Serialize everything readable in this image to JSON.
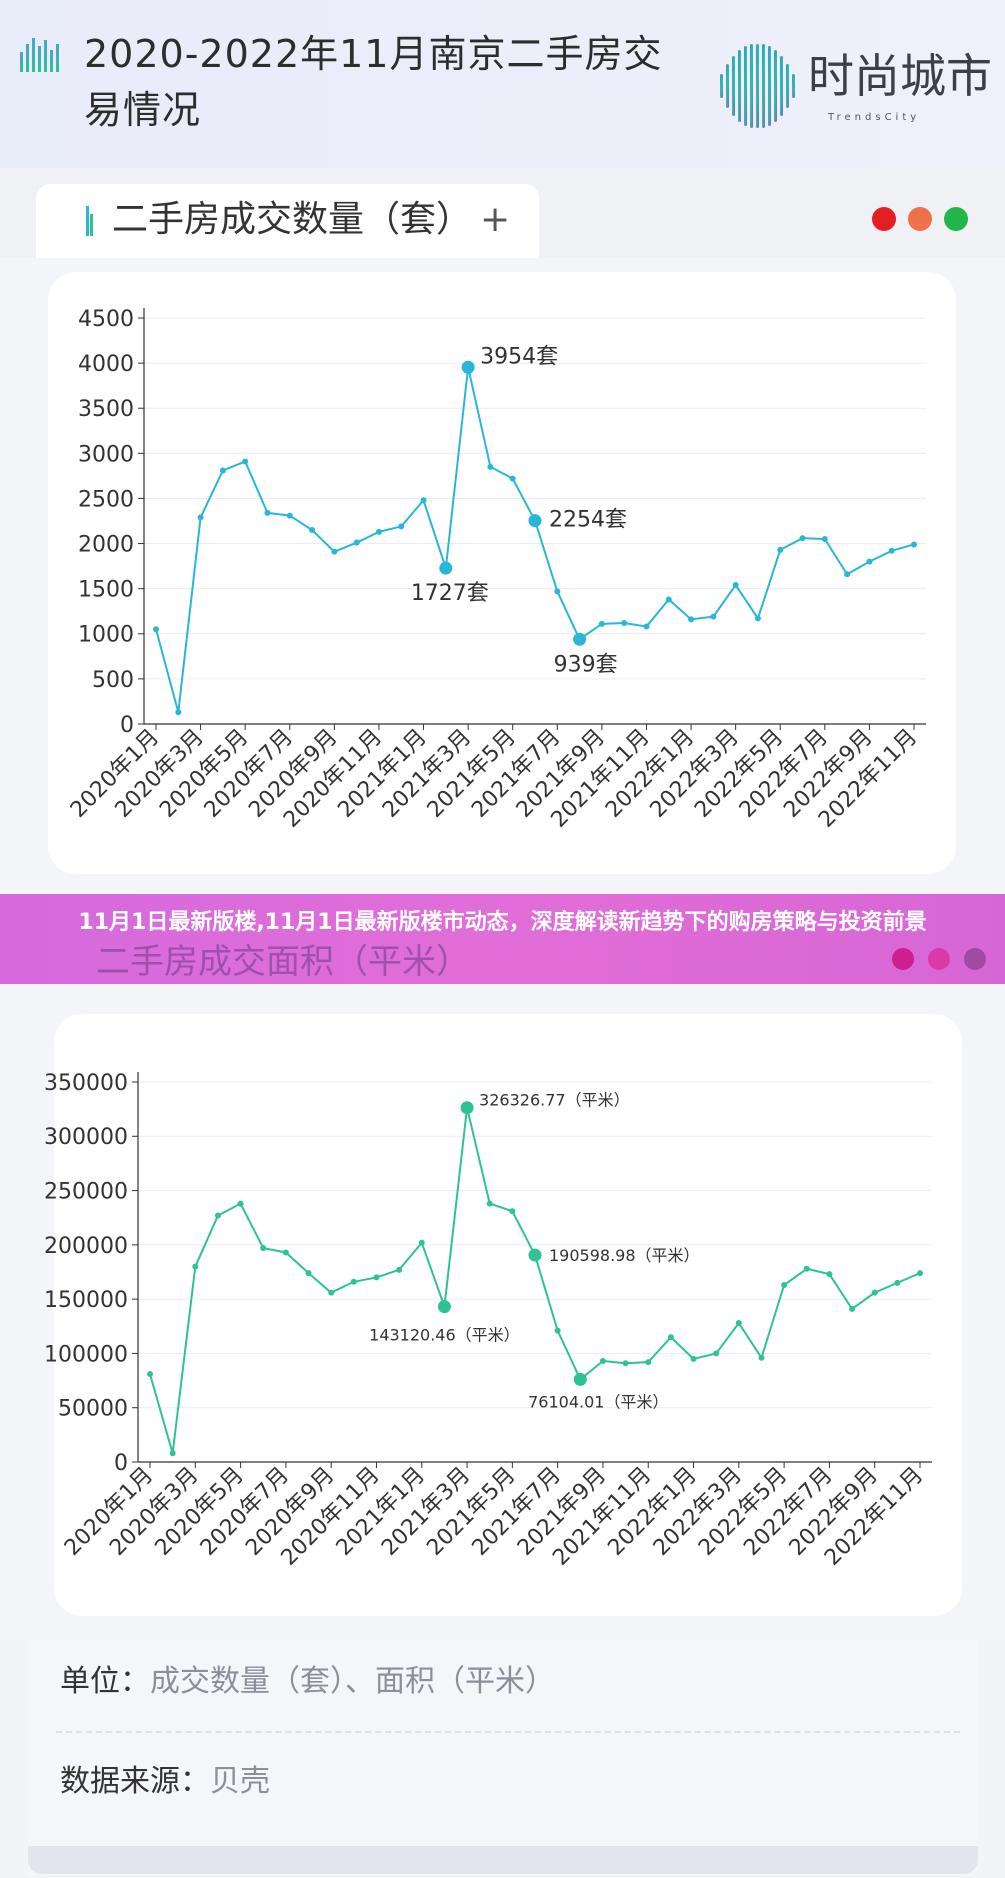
{
  "header": {
    "title": "2020-2022年11月南京二手房交易情况",
    "logo_text": "时尚城市",
    "logo_sub": "TrendsCity"
  },
  "tab": {
    "title": "二手房成交数量（套）",
    "plus": "+"
  },
  "window_dots": [
    "#e21f24",
    "#f07049",
    "#22b54a"
  ],
  "banner": {
    "text": "11月1日最新版楼,11月1日最新版楼市动态，深度解读新趋势下的购房策略与投资前景",
    "covered_title": "二手房成交面积（平米）"
  },
  "banner_dots": [
    "#cf1f8f",
    "#d93aa8",
    "#a04aa4"
  ],
  "footer": {
    "unit_key": "单位：",
    "unit_value": "成交数量（套）、面积（平米）",
    "source_key": "数据来源：",
    "source_value": "贝壳"
  },
  "chart_data": [
    {
      "type": "line",
      "color": "#29b6d8",
      "categories": [
        "2020年1月",
        "2020年2月",
        "2020年3月",
        "2020年4月",
        "2020年5月",
        "2020年6月",
        "2020年7月",
        "2020年8月",
        "2020年9月",
        "2020年10月",
        "2020年11月",
        "2020年12月",
        "2021年1月",
        "2021年2月",
        "2021年3月",
        "2021年4月",
        "2021年5月",
        "2021年6月",
        "2021年7月",
        "2021年8月",
        "2021年9月",
        "2021年10月",
        "2021年11月",
        "2021年12月",
        "2022年1月",
        "2022年2月",
        "2022年3月",
        "2022年4月",
        "2022年5月",
        "2022年6月",
        "2022年7月",
        "2022年8月",
        "2022年9月",
        "2022年10月",
        "2022年11月"
      ],
      "tick_labels": [
        "2020年1月",
        "2020年3月",
        "2020年5月",
        "2020年7月",
        "2020年9月",
        "2020年11月",
        "2021年1月",
        "2021年3月",
        "2021年5月",
        "2021年7月",
        "2021年9月",
        "2021年11月",
        "2022年1月",
        "2022年3月",
        "2022年5月",
        "2022年7月",
        "2022年9月",
        "2022年11月"
      ],
      "values": [
        1050,
        130,
        2290,
        2810,
        2910,
        2340,
        2310,
        2150,
        1910,
        2010,
        2130,
        2190,
        2480,
        1727,
        3954,
        2850,
        2720,
        2254,
        1470,
        939,
        1110,
        1120,
        1080,
        1380,
        1160,
        1190,
        1540,
        1170,
        1930,
        2060,
        2050,
        1660,
        1800,
        1920,
        1990
      ],
      "ylim": [
        0,
        4500
      ],
      "yticks": [
        0,
        500,
        1000,
        1500,
        2000,
        2500,
        3000,
        3500,
        4000,
        4500
      ],
      "annotations": [
        {
          "index": 14,
          "label": "3954套"
        },
        {
          "index": 13,
          "label": "1727套"
        },
        {
          "index": 17,
          "label": "2254套"
        },
        {
          "index": 19,
          "label": "939套"
        }
      ],
      "grid": true
    },
    {
      "type": "line",
      "color": "#2ec391",
      "categories": [
        "2020年1月",
        "2020年2月",
        "2020年3月",
        "2020年4月",
        "2020年5月",
        "2020年6月",
        "2020年7月",
        "2020年8月",
        "2020年9月",
        "2020年10月",
        "2020年11月",
        "2020年12月",
        "2021年1月",
        "2021年2月",
        "2021年3月",
        "2021年4月",
        "2021年5月",
        "2021年6月",
        "2021年7月",
        "2021年8月",
        "2021年9月",
        "2021年10月",
        "2021年11月",
        "2021年12月",
        "2022年1月",
        "2022年2月",
        "2022年3月",
        "2022年4月",
        "2022年5月",
        "2022年6月",
        "2022年7月",
        "2022年8月",
        "2022年9月",
        "2022年10月",
        "2022年11月"
      ],
      "tick_labels": [
        "2020年1月",
        "2020年3月",
        "2020年5月",
        "2020年7月",
        "2020年9月",
        "2020年11月",
        "2021年1月",
        "2021年3月",
        "2021年5月",
        "2021年7月",
        "2021年9月",
        "2021年11月",
        "2022年1月",
        "2022年3月",
        "2022年5月",
        "2022年7月",
        "2022年9月",
        "2022年11月"
      ],
      "values": [
        81000,
        8000,
        180000,
        227000,
        238000,
        197000,
        193000,
        174000,
        156000,
        166000,
        170000,
        177000,
        202000,
        143120.46,
        326326.77,
        238000,
        231000,
        190598.98,
        121000,
        76104.01,
        93000,
        91000,
        92000,
        115000,
        95000,
        100000,
        128000,
        96000,
        163000,
        178000,
        173000,
        141000,
        156000,
        165000,
        174000
      ],
      "ylim": [
        0,
        350000
      ],
      "yticks": [
        0,
        50000,
        100000,
        150000,
        200000,
        250000,
        300000,
        350000
      ],
      "annotations": [
        {
          "index": 14,
          "label": "326326.77（平米）"
        },
        {
          "index": 13,
          "label": "143120.46（平米）"
        },
        {
          "index": 17,
          "label": "190598.98（平米）"
        },
        {
          "index": 19,
          "label": "76104.01（平米）"
        }
      ],
      "grid": true
    }
  ]
}
